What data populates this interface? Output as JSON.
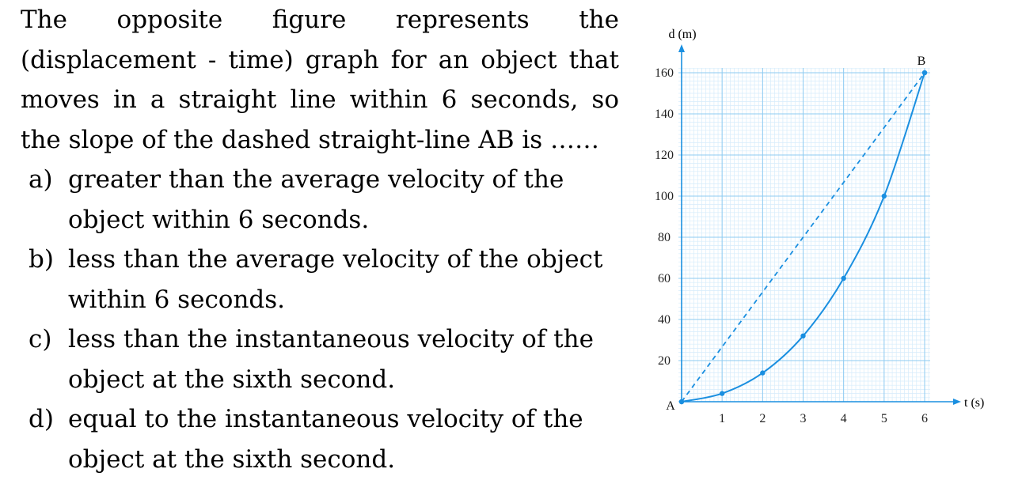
{
  "question": {
    "stem": "The opposite figure represents the (displacement - time) graph for an object that moves in a straight line within 6 seconds, so the slope of the dashed straight-line AB is ……",
    "options": [
      {
        "letter": "a)",
        "text": "greater than the average velocity of the object within 6 seconds."
      },
      {
        "letter": "b)",
        "text": "less than the average velocity of the object within 6 seconds."
      },
      {
        "letter": "c)",
        "text": "less than the instantaneous velocity of the object at the sixth second."
      },
      {
        "letter": "d)",
        "text": "equal to the instantaneous velocity of the object at the sixth second."
      }
    ]
  },
  "chart_data": {
    "type": "line",
    "xlabel": "t (s)",
    "ylabel": "d (m)",
    "xlim": [
      0,
      6
    ],
    "ylim": [
      0,
      160
    ],
    "xticks": [
      "1",
      "2",
      "3",
      "4",
      "5",
      "6"
    ],
    "yticks": [
      "20",
      "40",
      "60",
      "80",
      "100",
      "120",
      "140",
      "160"
    ],
    "grid": true,
    "series": [
      {
        "style": "solid-curve",
        "color": "#1a8fe0",
        "x": [
          0,
          1,
          2,
          3,
          4,
          5,
          6
        ],
        "y": [
          0,
          4,
          14,
          32,
          60,
          100,
          160
        ]
      },
      {
        "style": "dashed-line",
        "color": "#1a8fe0",
        "x": [
          0,
          6
        ],
        "y": [
          0,
          160
        ]
      }
    ],
    "points": [
      {
        "label": "A",
        "x": 0,
        "y": 0
      },
      {
        "label": "B",
        "x": 6,
        "y": 160
      }
    ],
    "colors": {
      "grid_major": "#8ecbf2",
      "grid_minor": "#d6ecfb",
      "curve": "#1a8fe0",
      "axis": "#1a8fe0"
    }
  }
}
